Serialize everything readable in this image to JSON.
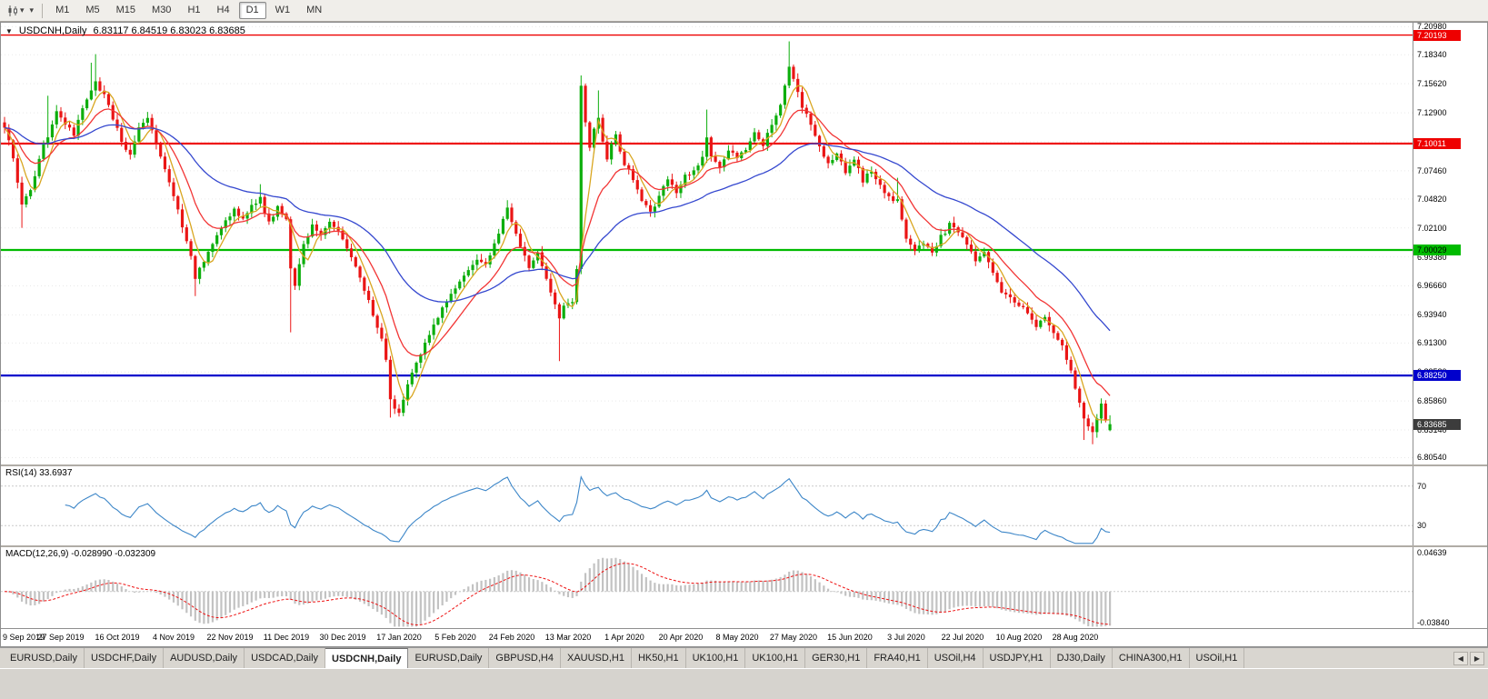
{
  "toolbar": {
    "timeframes": [
      "M1",
      "M5",
      "M15",
      "M30",
      "H1",
      "H4",
      "D1",
      "W1",
      "MN"
    ],
    "active_timeframe": "D1"
  },
  "chart": {
    "symbol_title": "USDCNH,Daily",
    "ohlc_text": "6.83117 6.84519 6.83023 6.83685",
    "open": "6.83117",
    "high": "6.84519",
    "low": "6.83023",
    "close": "6.83685"
  },
  "chart_data": {
    "type": "candlestick",
    "symbol": "USDCNH",
    "timeframe": "Daily",
    "ylim": [
      6.799,
      7.2135
    ],
    "num_candles": 256,
    "candle_spacing": 4.769,
    "noise": 0.005,
    "up_color": "#0cae0c",
    "down_color": "#ea1515",
    "y_axis_ticks": [
      "7.20980",
      "7.18340",
      "7.15620",
      "7.12900",
      "7.10180",
      "7.07460",
      "7.04820",
      "7.02100",
      "6.99380",
      "6.96660",
      "6.93940",
      "6.91300",
      "6.88580",
      "6.85860",
      "6.83140",
      "6.80540"
    ],
    "hlines": [
      {
        "value": 7.20193,
        "label": "7.20193",
        "color": "#ee0000",
        "text_color": "#ffffff",
        "width": 1.4
      },
      {
        "value": 7.10011,
        "label": "7.10011",
        "color": "#ee0000",
        "text_color": "#ffffff",
        "width": 2.2
      },
      {
        "value": 7.00029,
        "label": "7.00029",
        "color": "#00bb00",
        "text_color": "#000000",
        "width": 2.2
      },
      {
        "value": 6.8825,
        "label": "6.88250",
        "color": "#0000cc",
        "text_color": "#ffffff",
        "width": 2.2
      }
    ],
    "current_price": {
      "value": 6.83685,
      "label": "6.83685",
      "color": "#3c3c3c",
      "text_color": "#ffffff"
    },
    "moving_averages": [
      {
        "name": "fast",
        "period": 5,
        "type": "sma",
        "color": "#d9a620"
      },
      {
        "name": "medium",
        "period": 13,
        "type": "ema",
        "color": "#f23535"
      },
      {
        "name": "slow",
        "period": 40,
        "type": "ema",
        "color": "#3548cf"
      }
    ],
    "close_keypoints": [
      [
        0,
        7.115
      ],
      [
        2,
        7.088
      ],
      [
        4,
        7.042
      ],
      [
        6,
        7.058
      ],
      [
        9,
        7.098
      ],
      [
        12,
        7.128
      ],
      [
        14,
        7.118
      ],
      [
        16,
        7.108
      ],
      [
        18,
        7.132
      ],
      [
        20,
        7.15
      ],
      [
        21,
        7.158
      ],
      [
        23,
        7.145
      ],
      [
        25,
        7.125
      ],
      [
        27,
        7.1
      ],
      [
        29,
        7.09
      ],
      [
        31,
        7.115
      ],
      [
        33,
        7.126
      ],
      [
        35,
        7.1
      ],
      [
        37,
        7.076
      ],
      [
        39,
        7.052
      ],
      [
        41,
        7.022
      ],
      [
        43,
        6.995
      ],
      [
        44,
        6.975
      ],
      [
        46,
        6.988
      ],
      [
        48,
        7.005
      ],
      [
        50,
        7.022
      ],
      [
        53,
        7.04
      ],
      [
        55,
        7.028
      ],
      [
        57,
        7.044
      ],
      [
        59,
        7.048
      ],
      [
        61,
        7.026
      ],
      [
        63,
        7.04
      ],
      [
        65,
        7.028
      ],
      [
        66,
        6.985
      ],
      [
        67,
        6.965
      ],
      [
        69,
        7.005
      ],
      [
        71,
        7.022
      ],
      [
        73,
        7.012
      ],
      [
        75,
        7.028
      ],
      [
        77,
        7.018
      ],
      [
        79,
        7.002
      ],
      [
        81,
        6.985
      ],
      [
        83,
        6.962
      ],
      [
        85,
        6.94
      ],
      [
        87,
        6.915
      ],
      [
        88,
        6.895
      ],
      [
        89,
        6.862
      ],
      [
        90,
        6.85
      ],
      [
        91,
        6.846
      ],
      [
        92,
        6.86
      ],
      [
        93,
        6.874
      ],
      [
        95,
        6.893
      ],
      [
        97,
        6.913
      ],
      [
        99,
        6.931
      ],
      [
        101,
        6.947
      ],
      [
        103,
        6.96
      ],
      [
        105,
        6.97
      ],
      [
        107,
        6.982
      ],
      [
        109,
        6.992
      ],
      [
        111,
        6.986
      ],
      [
        113,
        7.004
      ],
      [
        115,
        7.03
      ],
      [
        116,
        7.038
      ],
      [
        117,
        7.026
      ],
      [
        119,
        7.004
      ],
      [
        121,
        6.984
      ],
      [
        123,
        6.996
      ],
      [
        125,
        6.974
      ],
      [
        127,
        6.95
      ],
      [
        128,
        6.934
      ],
      [
        129,
        6.946
      ],
      [
        131,
        6.95
      ],
      [
        132,
        6.984
      ],
      [
        133,
        7.152
      ],
      [
        134,
        7.118
      ],
      [
        135,
        7.096
      ],
      [
        136,
        7.112
      ],
      [
        137,
        7.126
      ],
      [
        138,
        7.104
      ],
      [
        139,
        7.086
      ],
      [
        140,
        7.098
      ],
      [
        141,
        7.11
      ],
      [
        142,
        7.094
      ],
      [
        143,
        7.082
      ],
      [
        145,
        7.066
      ],
      [
        147,
        7.046
      ],
      [
        149,
        7.034
      ],
      [
        151,
        7.052
      ],
      [
        153,
        7.066
      ],
      [
        155,
        7.056
      ],
      [
        157,
        7.07
      ],
      [
        159,
        7.076
      ],
      [
        161,
        7.086
      ],
      [
        162,
        7.106
      ],
      [
        163,
        7.09
      ],
      [
        165,
        7.076
      ],
      [
        167,
        7.094
      ],
      [
        169,
        7.086
      ],
      [
        171,
        7.096
      ],
      [
        173,
        7.11
      ],
      [
        175,
        7.1
      ],
      [
        177,
        7.116
      ],
      [
        179,
        7.138
      ],
      [
        180,
        7.154
      ],
      [
        181,
        7.17
      ],
      [
        182,
        7.16
      ],
      [
        184,
        7.136
      ],
      [
        186,
        7.116
      ],
      [
        188,
        7.096
      ],
      [
        190,
        7.08
      ],
      [
        192,
        7.09
      ],
      [
        194,
        7.074
      ],
      [
        196,
        7.084
      ],
      [
        198,
        7.066
      ],
      [
        200,
        7.076
      ],
      [
        202,
        7.06
      ],
      [
        204,
        7.05
      ],
      [
        206,
        7.046
      ],
      [
        207,
        7.03
      ],
      [
        208,
        7.01
      ],
      [
        210,
        6.999
      ],
      [
        212,
        7.008
      ],
      [
        214,
        6.998
      ],
      [
        216,
        7.012
      ],
      [
        218,
        7.024
      ],
      [
        220,
        7.016
      ],
      [
        222,
        7.004
      ],
      [
        224,
        6.99
      ],
      [
        226,
        7.0
      ],
      [
        228,
        6.98
      ],
      [
        230,
        6.962
      ],
      [
        232,
        6.954
      ],
      [
        234,
        6.95
      ],
      [
        236,
        6.94
      ],
      [
        238,
        6.927
      ],
      [
        240,
        6.937
      ],
      [
        242,
        6.921
      ],
      [
        244,
        6.911
      ],
      [
        246,
        6.888
      ],
      [
        247,
        6.872
      ],
      [
        248,
        6.857
      ],
      [
        249,
        6.844
      ],
      [
        250,
        6.835
      ],
      [
        251,
        6.827
      ],
      [
        252,
        6.844
      ],
      [
        253,
        6.854
      ],
      [
        254,
        6.841
      ],
      [
        255,
        6.837
      ]
    ],
    "wicks": [
      [
        4,
        "l",
        7.021
      ],
      [
        10,
        "h",
        7.145
      ],
      [
        20,
        "h",
        7.176
      ],
      [
        21,
        "h",
        7.184
      ],
      [
        44,
        "l",
        6.957
      ],
      [
        59,
        "h",
        7.062
      ],
      [
        66,
        "l",
        6.923
      ],
      [
        89,
        "l",
        6.843
      ],
      [
        91,
        "l",
        6.844
      ],
      [
        116,
        "h",
        7.047
      ],
      [
        128,
        "l",
        6.896
      ],
      [
        133,
        "h",
        7.164
      ],
      [
        137,
        "h",
        7.15
      ],
      [
        162,
        "h",
        7.132
      ],
      [
        181,
        "h",
        7.196
      ],
      [
        206,
        "h",
        7.068
      ],
      [
        249,
        "l",
        6.822
      ],
      [
        251,
        "l",
        6.818
      ]
    ],
    "last_candle": [
      6.83117,
      6.84519,
      6.83023,
      6.83685
    ],
    "x_labels": [
      "9 Sep 2019",
      "27 Sep 2019",
      "16 Oct 2019",
      "4 Nov 2019",
      "22 Nov 2019",
      "11 Dec 2019",
      "30 Dec 2019",
      "17 Jan 2020",
      "5 Feb 2020",
      "24 Feb 2020",
      "13 Mar 2020",
      "1 Apr 2020",
      "20 Apr 2020",
      "8 May 2020",
      "27 May 2020",
      "15 Jun 2020",
      "3 Jul 2020",
      "22 Jul 2020",
      "10 Aug 2020",
      "28 Aug 2020"
    ],
    "x_label_candle_interval": 13,
    "grid": true,
    "legend_position": "none"
  },
  "rsi": {
    "label": "RSI(14) 33.6937",
    "period": 14,
    "current": 33.6937,
    "levels": [
      "70",
      "30"
    ],
    "color": "#3c86c8",
    "ylim": [
      10,
      90
    ]
  },
  "macd": {
    "label": "MACD(12,26,9) -0.028990 -0.032309",
    "fast": 12,
    "slow": 26,
    "signal_period": 9,
    "macd_value": -0.02899,
    "signal_value": -0.032309,
    "axis_max": "0.04639",
    "axis_min": "-0.03840",
    "histogram_color": "#c2c2c2",
    "signal_color": "#ee1111"
  },
  "tabs": {
    "items": [
      "EURUSD,Daily",
      "USDCHF,Daily",
      "AUDUSD,Daily",
      "USDCAD,Daily",
      "USDCNH,Daily",
      "EURUSD,Daily",
      "GBPUSD,H4",
      "XAUUSD,H1",
      "HK50,H1",
      "UK100,H1",
      "UK100,H1",
      "GER30,H1",
      "FRA40,H1",
      "USOil,H4",
      "USDJPY,H1",
      "DJ30,Daily",
      "CHINA300,H1",
      "USOil,H1"
    ],
    "active_index": 4,
    "scroll_left": "◀",
    "scroll_right": "▶"
  }
}
